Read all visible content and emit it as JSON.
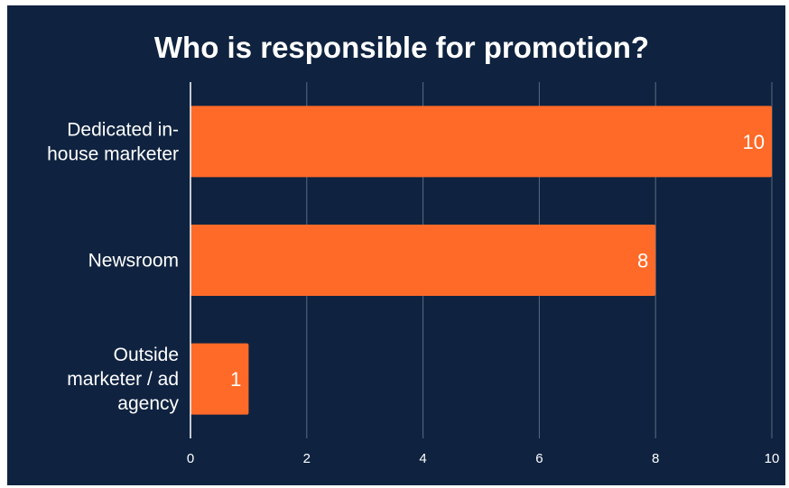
{
  "chart_data": {
    "type": "bar",
    "orientation": "horizontal",
    "title": "Who is responsible for promotion?",
    "categories": [
      [
        "Dedicated in-",
        "house marketer"
      ],
      [
        "Newsroom"
      ],
      [
        "Outside",
        "marketer / ad",
        "agency"
      ]
    ],
    "values": [
      10,
      8,
      1
    ],
    "xlim": [
      0,
      10
    ],
    "xticks": [
      0,
      2,
      4,
      6,
      8,
      10
    ],
    "grid": true,
    "data_labels": true,
    "colors": {
      "background": "#0f2340",
      "bar": "#ff6a28",
      "grid": "#5a6b82",
      "axis": "#ffffff",
      "text": "#ffffff"
    }
  }
}
